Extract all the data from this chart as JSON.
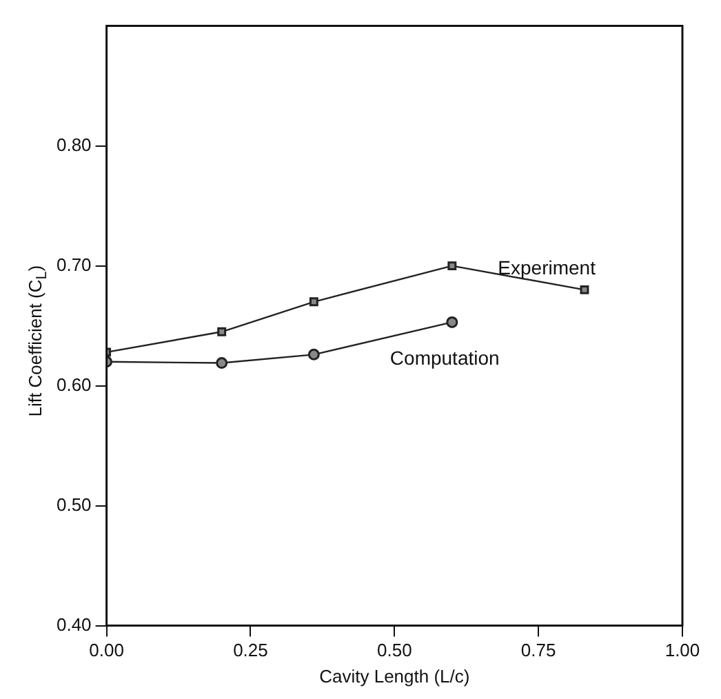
{
  "chart_data": {
    "type": "line",
    "xlabel": "Cavity Length (L/c)",
    "ylabel": "Lift Coefficient (C$_{L}$)",
    "xlim": [
      0,
      1
    ],
    "xticks": [
      {
        "value": 0,
        "label": "0.00"
      },
      {
        "value": 0.25,
        "label": "0.25"
      },
      {
        "value": 0.5,
        "label": "0.50"
      },
      {
        "value": 0.75,
        "label": "0.75"
      },
      {
        "value": 1,
        "label": "1.00"
      }
    ],
    "ylim": [
      0.4,
      0.9
    ],
    "yticks": [
      {
        "value": 0.4,
        "label": "0.40"
      },
      {
        "value": 0.5,
        "label": "0.50"
      },
      {
        "value": 0.6,
        "label": "0.60"
      },
      {
        "value": 0.7,
        "label": "0.70"
      },
      {
        "value": 0.8,
        "label": "0.80"
      }
    ],
    "grid": false,
    "legend": false,
    "line_style": "solid",
    "series": [
      {
        "name": "Experiment",
        "color": "#222222",
        "marker": "square",
        "x": [
          0,
          0.2,
          0.36,
          0.6,
          0.83
        ],
        "values": [
          0.628,
          0.645,
          0.67,
          0.7,
          0.68
        ]
      },
      {
        "name": "Computation",
        "color": "#222222",
        "marker": "circle",
        "x": [
          0,
          0.2,
          0.36,
          0.6
        ],
        "values": [
          0.62,
          0.619,
          0.626,
          0.653
        ]
      }
    ]
  }
}
